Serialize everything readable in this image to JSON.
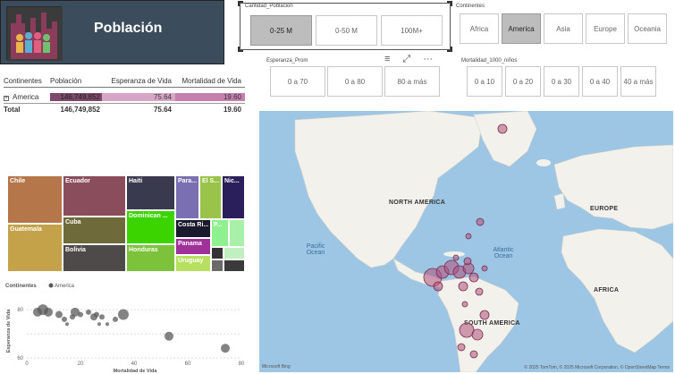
{
  "header": {
    "title": "Población"
  },
  "slicers": {
    "cantidad": {
      "title": "Cantidad_Poblacion",
      "options": [
        "0-25 M",
        "0-50 M",
        "100M+"
      ],
      "selected": "0-25 M"
    },
    "continentes": {
      "title": "Continentes",
      "options": [
        "Africa",
        "America",
        "Asia",
        "Europe",
        "Oceania"
      ],
      "selected": "America"
    },
    "esperanza": {
      "title": "Esperanza_Prom",
      "options": [
        "0 a 70",
        "0 a 80",
        "80 a más"
      ]
    },
    "mortalidad": {
      "title": "Mortalidad_1000_niños",
      "options": [
        "0 a 10",
        "0 a 20",
        "0 a 30",
        "0 a 40",
        "40 a más"
      ]
    }
  },
  "toolbar": {
    "filter_icon": "≡",
    "focus_icon": "⤢",
    "more_icon": "···"
  },
  "table": {
    "headers": [
      "Continentes",
      "Población",
      "Esperanza de Vida",
      "Mortalidad de Vida"
    ],
    "rows": [
      {
        "label": "America",
        "expand": "+",
        "poblacion": "146,749,852",
        "esperanza": "75.64",
        "mortalidad": "19.60"
      }
    ],
    "total": {
      "label": "Total",
      "poblacion": "146,749,852",
      "esperanza": "75.64",
      "mortalidad": "19.60"
    }
  },
  "treemap": {
    "tiles": [
      {
        "label": "Chile",
        "color": "#b5774a"
      },
      {
        "label": "Guatemala",
        "color": "#c4a24a"
      },
      {
        "label": "Ecuador",
        "color": "#8a4d5c"
      },
      {
        "label": "Cuba",
        "color": "#6f6a3a"
      },
      {
        "label": "Bolivia",
        "color": "#4f4a4a"
      },
      {
        "label": "Haiti",
        "color": "#3a3a4f"
      },
      {
        "label": "Dominican ...",
        "color": "#3cd400"
      },
      {
        "label": "Honduras",
        "color": "#7cc23a"
      },
      {
        "label": "Para...",
        "color": "#7a6fb0"
      },
      {
        "label": "El S...",
        "color": "#9ac34a"
      },
      {
        "label": "Nic...",
        "color": "#2a1f5a"
      },
      {
        "label": "Costa Ri...",
        "color": "#1a1a2e"
      },
      {
        "label": "P...",
        "color": "#8ef08e"
      },
      {
        "label": "Panama",
        "color": "#a0309a"
      },
      {
        "label": "Uruguay",
        "color": "#b8e060"
      }
    ]
  },
  "chart_data": {
    "type": "scatter",
    "title": "",
    "legend_title": "Continentes",
    "series": [
      {
        "name": "America",
        "color": "#5a5a5a",
        "points": [
          {
            "x": 4,
            "y": 79,
            "r": 5
          },
          {
            "x": 6,
            "y": 80,
            "r": 6
          },
          {
            "x": 8,
            "y": 79,
            "r": 5
          },
          {
            "x": 12,
            "y": 78,
            "r": 4
          },
          {
            "x": 14,
            "y": 76,
            "r": 3
          },
          {
            "x": 15,
            "y": 74,
            "r": 2
          },
          {
            "x": 17,
            "y": 77,
            "r": 3
          },
          {
            "x": 18,
            "y": 79,
            "r": 5
          },
          {
            "x": 20,
            "y": 78,
            "r": 3
          },
          {
            "x": 23,
            "y": 79,
            "r": 3
          },
          {
            "x": 25,
            "y": 77,
            "r": 4
          },
          {
            "x": 26,
            "y": 78,
            "r": 3
          },
          {
            "x": 27,
            "y": 74,
            "r": 2
          },
          {
            "x": 28,
            "y": 77,
            "r": 3
          },
          {
            "x": 30,
            "y": 74,
            "r": 2
          },
          {
            "x": 33,
            "y": 76,
            "r": 3
          },
          {
            "x": 36,
            "y": 78,
            "r": 6
          },
          {
            "x": 53,
            "y": 69,
            "r": 5
          },
          {
            "x": 74,
            "y": 64,
            "r": 5
          }
        ]
      }
    ],
    "xlabel": "Mortalidad de Vida",
    "ylabel": "Esperanza de Vida",
    "xlim": [
      0,
      80
    ],
    "ylim": [
      60,
      86
    ],
    "xticks": [
      0,
      20,
      40,
      60,
      80
    ],
    "yticks": [
      60,
      70,
      80
    ],
    "ytick_labels": [
      "60",
      "",
      "80"
    ]
  },
  "map": {
    "labels": {
      "na": "NORTH AMERICA",
      "sa": "SOUTH AMERICA",
      "eu": "EUROPE",
      "af": "AFRICA"
    },
    "oceans": {
      "pacific": "Pacific\nOcean",
      "atlantic": "Atlantic\nOcean"
    },
    "footer": "© 2025 TomTom, © 2025 Microsoft Corporation, © OpenStreetMap  Terms",
    "logo": "Microsoft Bing",
    "bubble_color": "#b0507a"
  }
}
